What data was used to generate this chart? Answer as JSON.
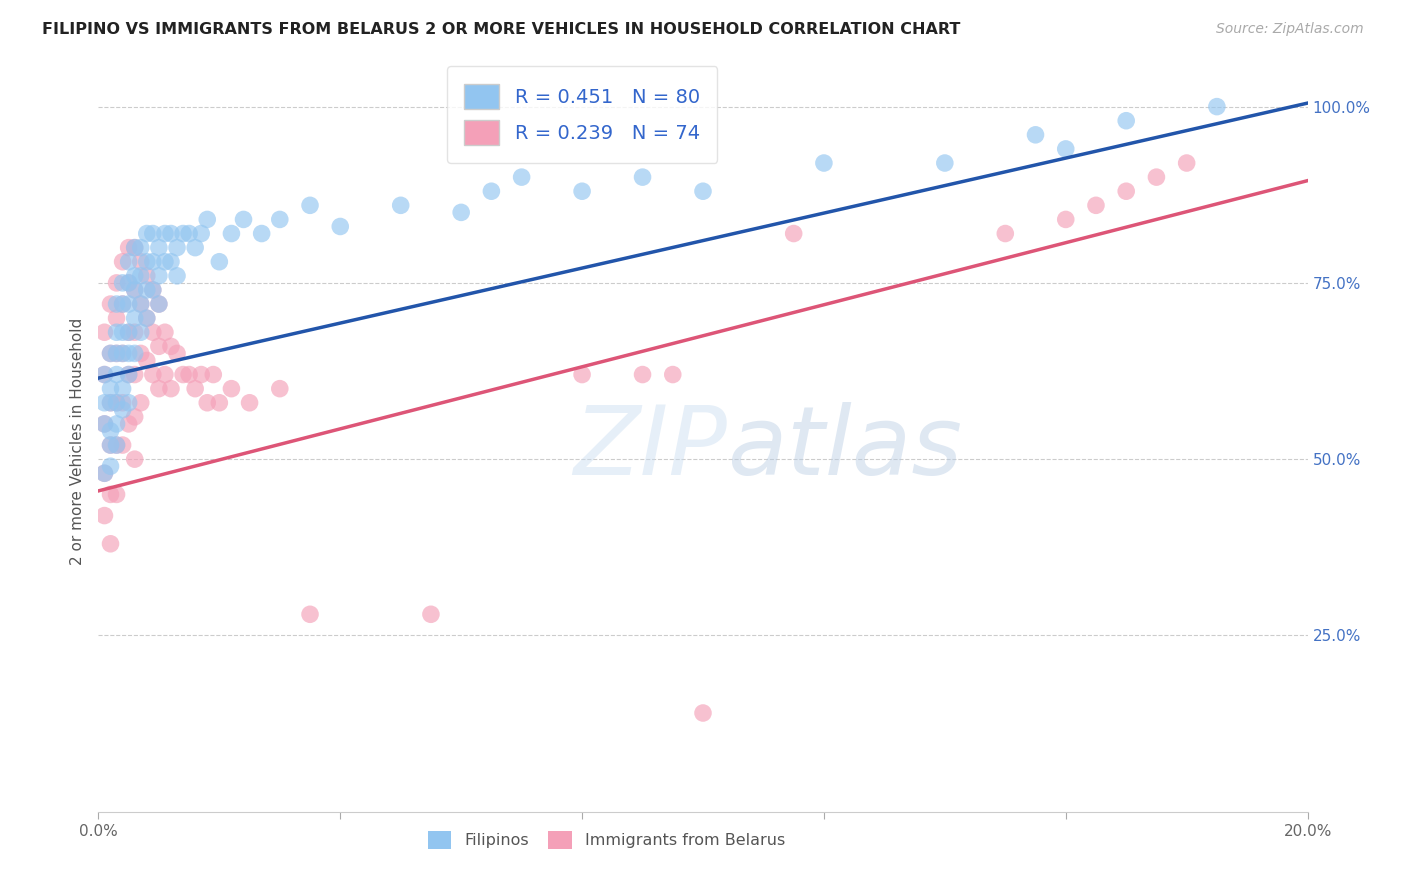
{
  "title": "FILIPINO VS IMMIGRANTS FROM BELARUS 2 OR MORE VEHICLES IN HOUSEHOLD CORRELATION CHART",
  "source": "Source: ZipAtlas.com",
  "ylabel": "2 or more Vehicles in Household",
  "xlabel": "",
  "xlim": [
    0.0,
    0.2
  ],
  "ylim": [
    0.0,
    1.05
  ],
  "R_filipino": 0.451,
  "N_filipino": 80,
  "R_belarus": 0.239,
  "N_belarus": 74,
  "color_filipino": "#92C5F0",
  "color_belarus": "#F4A0B8",
  "line_color_filipino": "#2255AA",
  "line_color_belarus": "#DD5577",
  "watermark_zip": "ZIP",
  "watermark_atlas": "atlas",
  "legend_labels": [
    "Filipinos",
    "Immigrants from Belarus"
  ],
  "filipino_x": [
    0.001,
    0.001,
    0.001,
    0.001,
    0.002,
    0.002,
    0.002,
    0.002,
    0.002,
    0.002,
    0.003,
    0.003,
    0.003,
    0.003,
    0.003,
    0.003,
    0.003,
    0.004,
    0.004,
    0.004,
    0.004,
    0.004,
    0.004,
    0.005,
    0.005,
    0.005,
    0.005,
    0.005,
    0.005,
    0.005,
    0.006,
    0.006,
    0.006,
    0.006,
    0.006,
    0.007,
    0.007,
    0.007,
    0.007,
    0.008,
    0.008,
    0.008,
    0.008,
    0.009,
    0.009,
    0.009,
    0.01,
    0.01,
    0.01,
    0.011,
    0.011,
    0.012,
    0.012,
    0.013,
    0.013,
    0.014,
    0.015,
    0.016,
    0.017,
    0.018,
    0.02,
    0.022,
    0.024,
    0.027,
    0.03,
    0.035,
    0.04,
    0.05,
    0.06,
    0.065,
    0.07,
    0.08,
    0.09,
    0.1,
    0.12,
    0.14,
    0.155,
    0.16,
    0.17,
    0.185
  ],
  "filipino_y": [
    0.62,
    0.58,
    0.55,
    0.48,
    0.65,
    0.6,
    0.58,
    0.54,
    0.52,
    0.49,
    0.72,
    0.68,
    0.65,
    0.62,
    0.58,
    0.55,
    0.52,
    0.75,
    0.72,
    0.68,
    0.65,
    0.6,
    0.57,
    0.78,
    0.75,
    0.72,
    0.68,
    0.65,
    0.62,
    0.58,
    0.8,
    0.76,
    0.74,
    0.7,
    0.65,
    0.8,
    0.76,
    0.72,
    0.68,
    0.82,
    0.78,
    0.74,
    0.7,
    0.82,
    0.78,
    0.74,
    0.8,
    0.76,
    0.72,
    0.82,
    0.78,
    0.82,
    0.78,
    0.8,
    0.76,
    0.82,
    0.82,
    0.8,
    0.82,
    0.84,
    0.78,
    0.82,
    0.84,
    0.82,
    0.84,
    0.86,
    0.83,
    0.86,
    0.85,
    0.88,
    0.9,
    0.88,
    0.9,
    0.88,
    0.92,
    0.92,
    0.96,
    0.94,
    0.98,
    1.0
  ],
  "belarus_x": [
    0.001,
    0.001,
    0.001,
    0.001,
    0.001,
    0.002,
    0.002,
    0.002,
    0.002,
    0.002,
    0.002,
    0.003,
    0.003,
    0.003,
    0.003,
    0.003,
    0.003,
    0.004,
    0.004,
    0.004,
    0.004,
    0.004,
    0.005,
    0.005,
    0.005,
    0.005,
    0.005,
    0.006,
    0.006,
    0.006,
    0.006,
    0.006,
    0.006,
    0.007,
    0.007,
    0.007,
    0.007,
    0.008,
    0.008,
    0.008,
    0.009,
    0.009,
    0.009,
    0.01,
    0.01,
    0.01,
    0.011,
    0.011,
    0.012,
    0.012,
    0.013,
    0.014,
    0.015,
    0.016,
    0.017,
    0.018,
    0.019,
    0.02,
    0.022,
    0.025,
    0.03,
    0.035,
    0.055,
    0.08,
    0.09,
    0.095,
    0.1,
    0.115,
    0.15,
    0.16,
    0.165,
    0.17,
    0.175,
    0.18
  ],
  "belarus_y": [
    0.68,
    0.62,
    0.55,
    0.48,
    0.42,
    0.72,
    0.65,
    0.58,
    0.52,
    0.45,
    0.38,
    0.75,
    0.7,
    0.65,
    0.58,
    0.52,
    0.45,
    0.78,
    0.72,
    0.65,
    0.58,
    0.52,
    0.8,
    0.75,
    0.68,
    0.62,
    0.55,
    0.8,
    0.74,
    0.68,
    0.62,
    0.56,
    0.5,
    0.78,
    0.72,
    0.65,
    0.58,
    0.76,
    0.7,
    0.64,
    0.74,
    0.68,
    0.62,
    0.72,
    0.66,
    0.6,
    0.68,
    0.62,
    0.66,
    0.6,
    0.65,
    0.62,
    0.62,
    0.6,
    0.62,
    0.58,
    0.62,
    0.58,
    0.6,
    0.58,
    0.6,
    0.28,
    0.28,
    0.62,
    0.62,
    0.62,
    0.14,
    0.82,
    0.82,
    0.84,
    0.86,
    0.88,
    0.9,
    0.92
  ]
}
